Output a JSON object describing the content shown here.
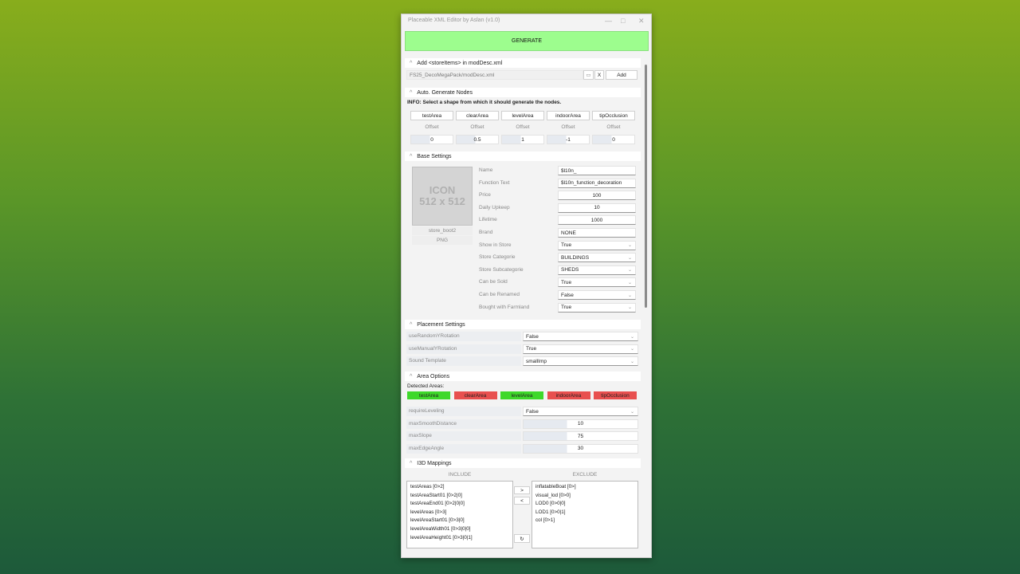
{
  "window": {
    "title": "Placeable XML Editor by Aslan (v1.0)"
  },
  "generate_label": "GENERATE",
  "store_items": {
    "header": "Add <storeItems> in modDesc.xml",
    "path": "FS25_DecoMegaPack/modDesc.xml",
    "clear_label": "X",
    "add_label": "Add"
  },
  "auto_nodes": {
    "header": "Auto. Generate Nodes",
    "info": "INFO: Select a shape from which it should generate the nodes.",
    "shapes": [
      {
        "label": "testArea",
        "offset_label": "Offset",
        "offset": "0"
      },
      {
        "label": "clearArea",
        "offset_label": "Offset",
        "offset": "0.5"
      },
      {
        "label": "levelArea",
        "offset_label": "Offset",
        "offset": "1"
      },
      {
        "label": "indoorArea",
        "offset_label": "Offset",
        "offset": "-1"
      },
      {
        "label": "tipOcclusion",
        "offset_label": "Offset",
        "offset": "0"
      }
    ]
  },
  "base": {
    "header": "Base Settings",
    "icon_text1": "ICON",
    "icon_text2": "512 x 512",
    "icon_name": "store_boot2",
    "icon_format": "PNG",
    "rows": [
      {
        "label": "Name",
        "value": "$l10n_",
        "type": "text"
      },
      {
        "label": "Function Text",
        "value": "$l10n_function_decoration",
        "type": "text"
      },
      {
        "label": "Price",
        "value": "100",
        "type": "num"
      },
      {
        "label": "Daily Upkeep",
        "value": "10",
        "type": "num"
      },
      {
        "label": "Lifetime",
        "value": "1000",
        "type": "num"
      },
      {
        "label": "Brand",
        "value": "NONE",
        "type": "text"
      },
      {
        "label": "Show in Store",
        "value": "True",
        "type": "sel"
      },
      {
        "label": "Store Categorie",
        "value": "BUILDINGS",
        "type": "sel"
      },
      {
        "label": "Store Subcategorie",
        "value": "SHEDS",
        "type": "sel"
      },
      {
        "label": "Can be Sold",
        "value": "True",
        "type": "sel"
      },
      {
        "label": "Can be Renamed",
        "value": "False",
        "type": "sel"
      },
      {
        "label": "Bought with Farmland",
        "value": "True",
        "type": "sel"
      }
    ]
  },
  "placement": {
    "header": "Placement Settings",
    "rows": [
      {
        "label": "useRandomYRotation",
        "value": "False"
      },
      {
        "label": "useManualYRotation",
        "value": "True"
      },
      {
        "label": "Sound Template",
        "value": "smallImp"
      }
    ]
  },
  "area": {
    "header": "Area Options",
    "detected_label": "Detected Areas:",
    "detected": [
      {
        "label": "testArea",
        "found": true
      },
      {
        "label": "clearArea",
        "found": false
      },
      {
        "label": "levelArea",
        "found": true
      },
      {
        "label": "indoorArea",
        "found": false
      },
      {
        "label": "tipOcclusion",
        "found": false
      }
    ],
    "colors": {
      "found": "#3ed82a",
      "missing": "#e8504f"
    },
    "rows": [
      {
        "label": "requireLeveling",
        "value": "False",
        "type": "sel"
      },
      {
        "label": "maxSmoothDistance",
        "value": "10",
        "type": "num"
      },
      {
        "label": "maxSlope",
        "value": "75",
        "type": "num"
      },
      {
        "label": "maxEdgeAngle",
        "value": "30",
        "type": "num"
      }
    ]
  },
  "i3d": {
    "header": "I3D Mappings",
    "include_label": "INCLUDE",
    "exclude_label": "EXCLUDE",
    "move_right": ">",
    "move_left": "<",
    "refresh": "↻",
    "include": [
      "testAreas [0>2]",
      "testAreaStart01 [0>2|0]",
      "testAreaEnd01 [0>2|0|0]",
      "levelAreas [0>3]",
      "levelAreaStart01 [0>3|0]",
      "levelAreaWidth01 [0>3|0|0]",
      "levelAreaHeight01 [0>3|0|1]"
    ],
    "exclude": [
      "inflatableBoat [0>]",
      "visual_lod [0>0]",
      "LOD0 [0>0|0]",
      "LOD1 [0>0|1]",
      "col [0>1]"
    ]
  }
}
